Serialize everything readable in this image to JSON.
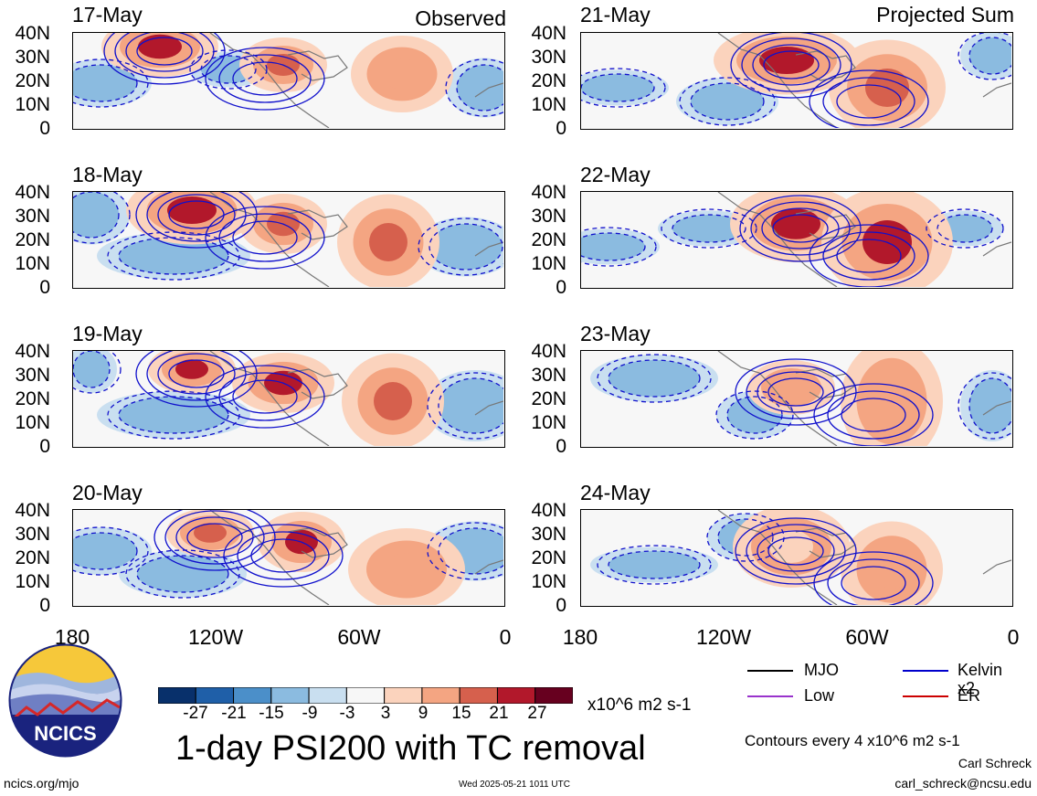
{
  "columns": {
    "left_title": "Observed",
    "right_title": "Projected Sum"
  },
  "panels_left": [
    {
      "date": "17-May"
    },
    {
      "date": "18-May"
    },
    {
      "date": "19-May"
    },
    {
      "date": "20-May"
    }
  ],
  "panels_right": [
    {
      "date": "21-May"
    },
    {
      "date": "22-May"
    },
    {
      "date": "23-May"
    },
    {
      "date": "24-May"
    }
  ],
  "lat_ticks": [
    "40N",
    "30N",
    "20N",
    "10N",
    "0"
  ],
  "lon_ticks": [
    "180",
    "120W",
    "60W",
    "0"
  ],
  "colorbar": {
    "labels": [
      "-27",
      "-21",
      "-15",
      "-9",
      "-3",
      "3",
      "9",
      "15",
      "21",
      "27"
    ],
    "colors": [
      "#08306b",
      "#1f5fa8",
      "#4b8fc9",
      "#8bbbe0",
      "#c9dff0",
      "#f7f7f7",
      "#fbd3bd",
      "#f4a582",
      "#d6604d",
      "#b2182b",
      "#67001f"
    ],
    "units": "x10^6 m2 s-1"
  },
  "title": "1-day PSI200 with TC removal",
  "legend": [
    {
      "label": "MJO",
      "color": "#000000"
    },
    {
      "label": "Kelvin x2",
      "color": "#0000cc"
    },
    {
      "label": "Low",
      "color": "#9933cc"
    },
    {
      "label": "ER",
      "color": "#cc0000"
    }
  ],
  "contour_note": "Contours every 4 x10^6 m2 s-1",
  "credit_name": "Carl Schreck",
  "credit_email": "carl_schreck@ncsu.edu",
  "url": "ncics.org/mjo",
  "timestamp": "Wed 2025-05-21 1011 UTC",
  "logo_text": "NCICS"
}
